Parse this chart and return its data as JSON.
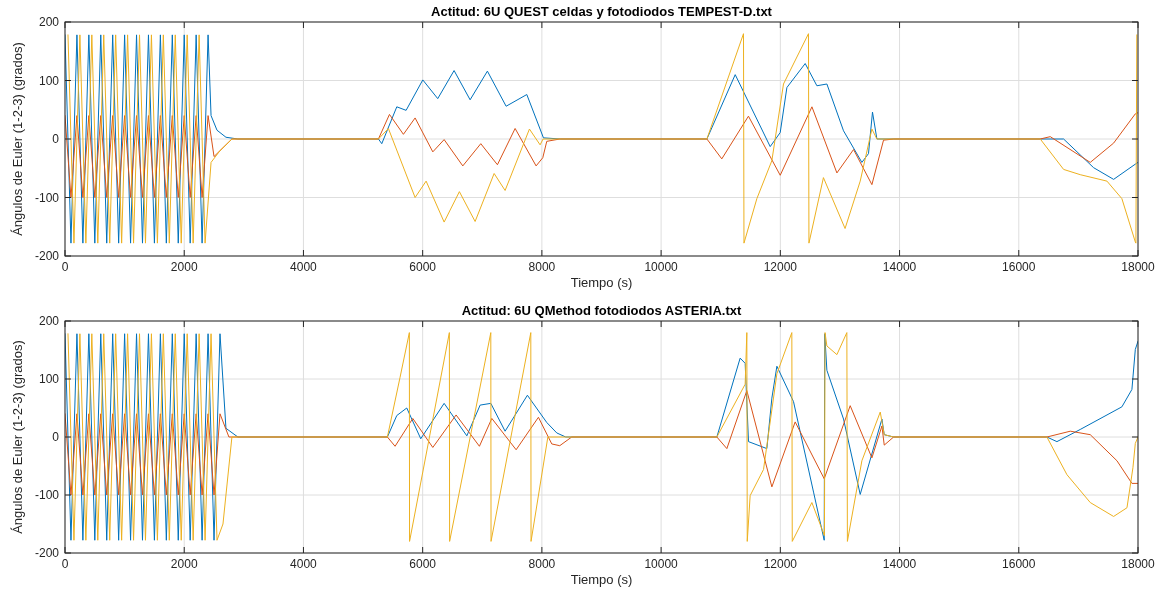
{
  "chart_data": [
    {
      "type": "line",
      "title": "Actitud: 6U QUEST celdas y fotodiodos TEMPEST-D.txt",
      "xlabel": "Tiempo (s)",
      "ylabel": "Ángulos de Euler (1-2-3) (grados)",
      "xlim": [
        0,
        18000
      ],
      "xticks": [
        0,
        2000,
        4000,
        6000,
        8000,
        10000,
        12000,
        14000,
        16000,
        18000
      ],
      "ylim": [
        -200,
        200
      ],
      "yticks": [
        -200,
        -100,
        0,
        100,
        200
      ],
      "grid": true,
      "line_style": "solid",
      "series": [
        {
          "color": "#0072bd",
          "x": [
            0,
            100,
            200,
            300,
            400,
            500,
            600,
            700,
            800,
            900,
            1000,
            1100,
            1200,
            1300,
            1400,
            1500,
            1600,
            1700,
            1800,
            1900,
            2000,
            2100,
            2200,
            2300,
            2400,
            2450,
            2550,
            2700,
            2900,
            5258,
            5314,
            5566,
            5722,
            6002,
            6253,
            6527,
            6796,
            7086,
            7400,
            7747,
            8026,
            8306,
            10768,
            11243,
            11830,
            11998,
            12110,
            12417,
            12613,
            12781,
            13060,
            13368,
            13479,
            13546,
            13620,
            16360,
            16752,
            17255,
            17591,
            17955,
            18000
          ],
          "values": [
            178,
            -178,
            178,
            -178,
            178,
            -178,
            178,
            -178,
            178,
            -178,
            178,
            -178,
            178,
            -178,
            178,
            -178,
            178,
            -178,
            178,
            -178,
            178,
            -178,
            178,
            -178,
            178,
            40,
            15,
            3,
            0,
            0,
            -8,
            55,
            49,
            101,
            69,
            117,
            67,
            116,
            56,
            76,
            2,
            0,
            0,
            110,
            -13,
            11,
            88,
            129,
            91,
            94,
            14,
            -40,
            -25,
            46,
            0,
            0,
            0,
            -49,
            -69,
            -43,
            -40
          ]
        },
        {
          "color": "#d95319",
          "x": [
            0,
            100,
            200,
            300,
            400,
            500,
            600,
            700,
            800,
            900,
            1000,
            1100,
            1200,
            1300,
            1400,
            1500,
            1600,
            1700,
            1800,
            1900,
            2000,
            2100,
            2200,
            2300,
            2400,
            2500,
            2800,
            5258,
            5443,
            5677,
            5873,
            6170,
            6360,
            6673,
            6975,
            7254,
            7551,
            7903,
            8015,
            8082,
            8300,
            10768,
            11018,
            11465,
            11998,
            12530,
            12949,
            13228,
            13536,
            13731,
            13900,
            16360,
            16528,
            17199,
            17591,
            17955,
            18000
          ],
          "values": [
            40,
            -100,
            40,
            -100,
            40,
            -100,
            40,
            -100,
            40,
            -100,
            40,
            -100,
            40,
            -100,
            40,
            -100,
            40,
            -100,
            40,
            -100,
            40,
            -100,
            40,
            -100,
            40,
            -30,
            0,
            0,
            42,
            8,
            36,
            -22,
            -1,
            -46,
            -8,
            -44,
            18,
            -46,
            -32,
            -4,
            0,
            0,
            -34,
            39,
            -62,
            55,
            -58,
            -18,
            -78,
            -2,
            0,
            0,
            4,
            -40,
            -7,
            43,
            45
          ]
        },
        {
          "color": "#edb120",
          "x": [
            50,
            150,
            250,
            350,
            450,
            550,
            650,
            750,
            850,
            950,
            1050,
            1150,
            1250,
            1350,
            1450,
            1550,
            1650,
            1750,
            1850,
            1950,
            2050,
            2150,
            2250,
            2350,
            2450,
            2600,
            2800,
            5258,
            5425,
            5873,
            6058,
            6360,
            6616,
            6880,
            7199,
            7383,
            7791,
            7970,
            8020,
            10768,
            11382,
            11390,
            11606,
            11858,
            12053,
            12472,
            12480,
            12723,
            13086,
            13340,
            13536,
            13620,
            16360,
            16752,
            17031,
            17479,
            17730,
            17955,
            17965,
            17980
          ],
          "values": [
            178,
            -178,
            178,
            -178,
            178,
            -178,
            178,
            -178,
            178,
            -178,
            178,
            -178,
            178,
            -178,
            178,
            -178,
            178,
            -178,
            178,
            -178,
            178,
            -178,
            178,
            -178,
            -40,
            -20,
            0,
            0,
            18,
            -100,
            -72,
            -142,
            -90,
            -141,
            -59,
            -88,
            17,
            -10,
            0,
            0,
            180,
            -178,
            -102,
            -37,
            94,
            180,
            -178,
            -66,
            -153,
            -72,
            17,
            0,
            0,
            -52,
            -61,
            -72,
            -102,
            -176,
            -178,
            178
          ]
        }
      ]
    },
    {
      "type": "line",
      "title": "Actitud: 6U QMethod fotodiodos ASTERIA.txt",
      "xlabel": "Tiempo (s)",
      "ylabel": "Ángulos de Euler (1-2-3) (grados)",
      "xlim": [
        0,
        18000
      ],
      "xticks": [
        0,
        2000,
        4000,
        6000,
        8000,
        10000,
        12000,
        14000,
        16000,
        18000
      ],
      "ylim": [
        -200,
        200
      ],
      "yticks": [
        -200,
        -100,
        0,
        100,
        200
      ],
      "grid": true,
      "line_style": "solid",
      "series": [
        {
          "color": "#0072bd",
          "x": [
            0,
            100,
            200,
            300,
            400,
            500,
            600,
            700,
            800,
            900,
            1000,
            1100,
            1200,
            1300,
            1400,
            1500,
            1600,
            1700,
            1800,
            1900,
            2000,
            2100,
            2200,
            2300,
            2400,
            2500,
            2600,
            2700,
            2900,
            5408,
            5566,
            5733,
            5968,
            6360,
            6741,
            6964,
            7143,
            7383,
            7757,
            8082,
            8250,
            8400,
            10935,
            11326,
            11410,
            11466,
            11774,
            11858,
            11942,
            12221,
            12557,
            12736,
            12745,
            12781,
            13060,
            13340,
            13704,
            13743,
            13900,
            16472,
            16640,
            17031,
            17730,
            17898,
            17955,
            18000
          ],
          "values": [
            178,
            -178,
            178,
            -178,
            178,
            -178,
            178,
            -178,
            178,
            -178,
            178,
            -178,
            178,
            -178,
            178,
            -178,
            178,
            -178,
            178,
            -178,
            178,
            -178,
            178,
            -178,
            178,
            -178,
            178,
            15,
            0,
            0,
            37,
            50,
            -3,
            58,
            2,
            55,
            58,
            10,
            72,
            25,
            7,
            0,
            0,
            136,
            127,
            -8,
            -20,
            67,
            122,
            61,
            -95,
            -178,
            178,
            115,
            31,
            -99,
            31,
            4,
            0,
            0,
            -8,
            13,
            52,
            82,
            151,
            165
          ]
        },
        {
          "color": "#d95319",
          "x": [
            0,
            100,
            200,
            300,
            400,
            500,
            600,
            700,
            800,
            900,
            1000,
            1100,
            1200,
            1300,
            1400,
            1500,
            1600,
            1700,
            1800,
            1900,
            2000,
            2100,
            2200,
            2300,
            2400,
            2500,
            2600,
            2750,
            5408,
            5537,
            5834,
            6170,
            6561,
            6952,
            7160,
            7568,
            7942,
            8166,
            8300,
            8500,
            10935,
            11103,
            11438,
            11858,
            12249,
            12736,
            13172,
            13536,
            13704,
            13743,
            13900,
            16472,
            16864,
            17199,
            17647,
            17898,
            18000
          ],
          "values": [
            40,
            -100,
            40,
            -100,
            40,
            -100,
            40,
            -100,
            40,
            -100,
            40,
            -100,
            40,
            -100,
            40,
            -100,
            40,
            -100,
            40,
            -100,
            40,
            -100,
            40,
            -100,
            40,
            -100,
            40,
            0,
            0,
            -16,
            32,
            -18,
            38,
            -16,
            32,
            -22,
            34,
            -12,
            -15,
            0,
            0,
            -20,
            80,
            -86,
            26,
            -72,
            54,
            -36,
            19,
            -14,
            0,
            0,
            10,
            4,
            -41,
            -80,
            -80
          ]
        },
        {
          "color": "#edb120",
          "x": [
            50,
            150,
            250,
            350,
            450,
            550,
            650,
            750,
            850,
            950,
            1050,
            1150,
            1250,
            1350,
            1450,
            1550,
            1650,
            1750,
            1850,
            1950,
            2050,
            2150,
            2250,
            2350,
            2450,
            2550,
            2650,
            2800,
            5408,
            5621,
            5777,
            5780,
            6448,
            6452,
            7143,
            7147,
            7814,
            7818,
            8100,
            10935,
            11410,
            11438,
            11445,
            11494,
            11718,
            11942,
            12193,
            12200,
            12529,
            12740,
            12750,
            12781,
            12949,
            13116,
            13125,
            13368,
            13676,
            13743,
            13900,
            16472,
            16808,
            17199,
            17591,
            17815,
            17915,
            17955,
            18000
          ],
          "values": [
            178,
            -178,
            178,
            -178,
            178,
            -178,
            178,
            -178,
            178,
            -178,
            178,
            -178,
            178,
            -178,
            178,
            -178,
            178,
            -178,
            178,
            -178,
            178,
            -178,
            178,
            -178,
            178,
            -178,
            -150,
            0,
            0,
            103,
            180,
            -180,
            180,
            -180,
            180,
            -180,
            180,
            -180,
            0,
            0,
            91,
            180,
            -180,
            -101,
            -56,
            109,
            180,
            -180,
            -113,
            -170,
            180,
            157,
            142,
            180,
            -180,
            -41,
            43,
            4,
            0,
            0,
            -65,
            -113,
            -137,
            -122,
            -53,
            -11,
            0
          ]
        }
      ]
    }
  ]
}
